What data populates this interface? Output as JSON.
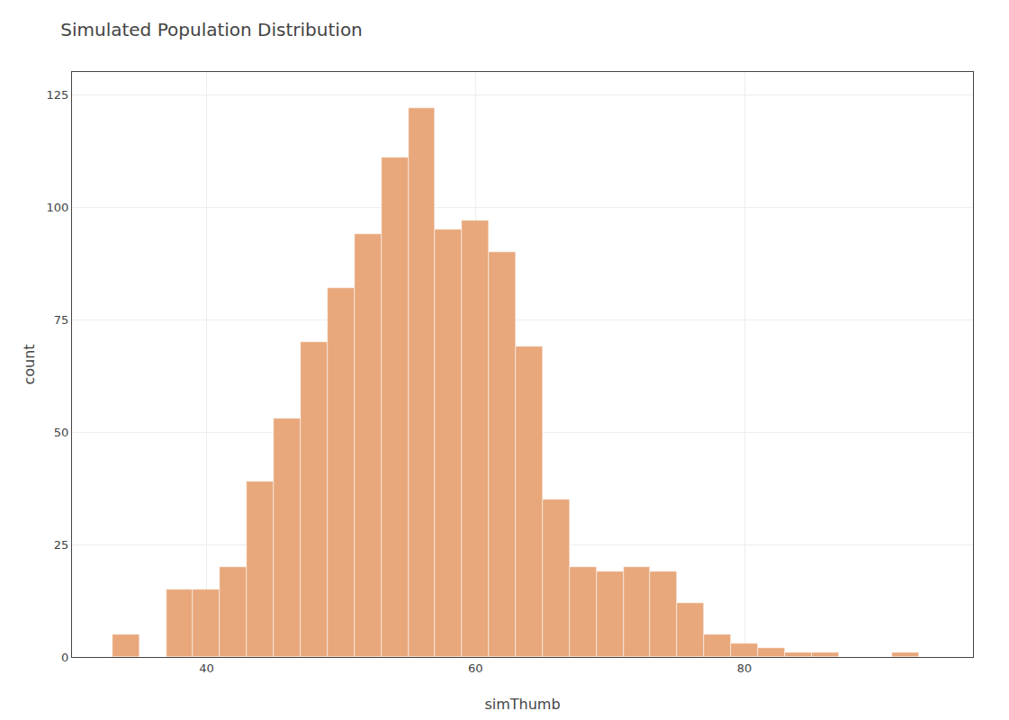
{
  "chart_data": {
    "type": "histogram",
    "title": "Simulated Population Distribution",
    "xlabel": "simThumb",
    "ylabel": "count",
    "color": "#E8A87C",
    "bins": [
      33,
      35,
      37,
      39,
      41,
      43,
      45,
      47,
      49,
      51,
      53,
      55,
      57,
      59,
      61,
      63,
      65,
      67,
      69,
      71,
      73,
      75,
      77,
      79,
      81,
      83,
      85,
      87,
      89,
      91,
      93,
      95
    ],
    "counts": [
      5,
      0,
      15,
      15,
      20,
      39,
      53,
      70,
      82,
      94,
      111,
      122,
      95,
      97,
      90,
      69,
      35,
      20,
      19,
      20,
      19,
      12,
      5,
      3,
      2,
      1,
      1,
      0,
      0,
      1,
      0
    ],
    "xlim": [
      30,
      97
    ],
    "ylim": [
      0,
      130
    ],
    "xticks": [
      40,
      60,
      80
    ],
    "yticks": [
      0,
      25,
      50,
      75,
      100,
      125
    ],
    "grid": true
  }
}
